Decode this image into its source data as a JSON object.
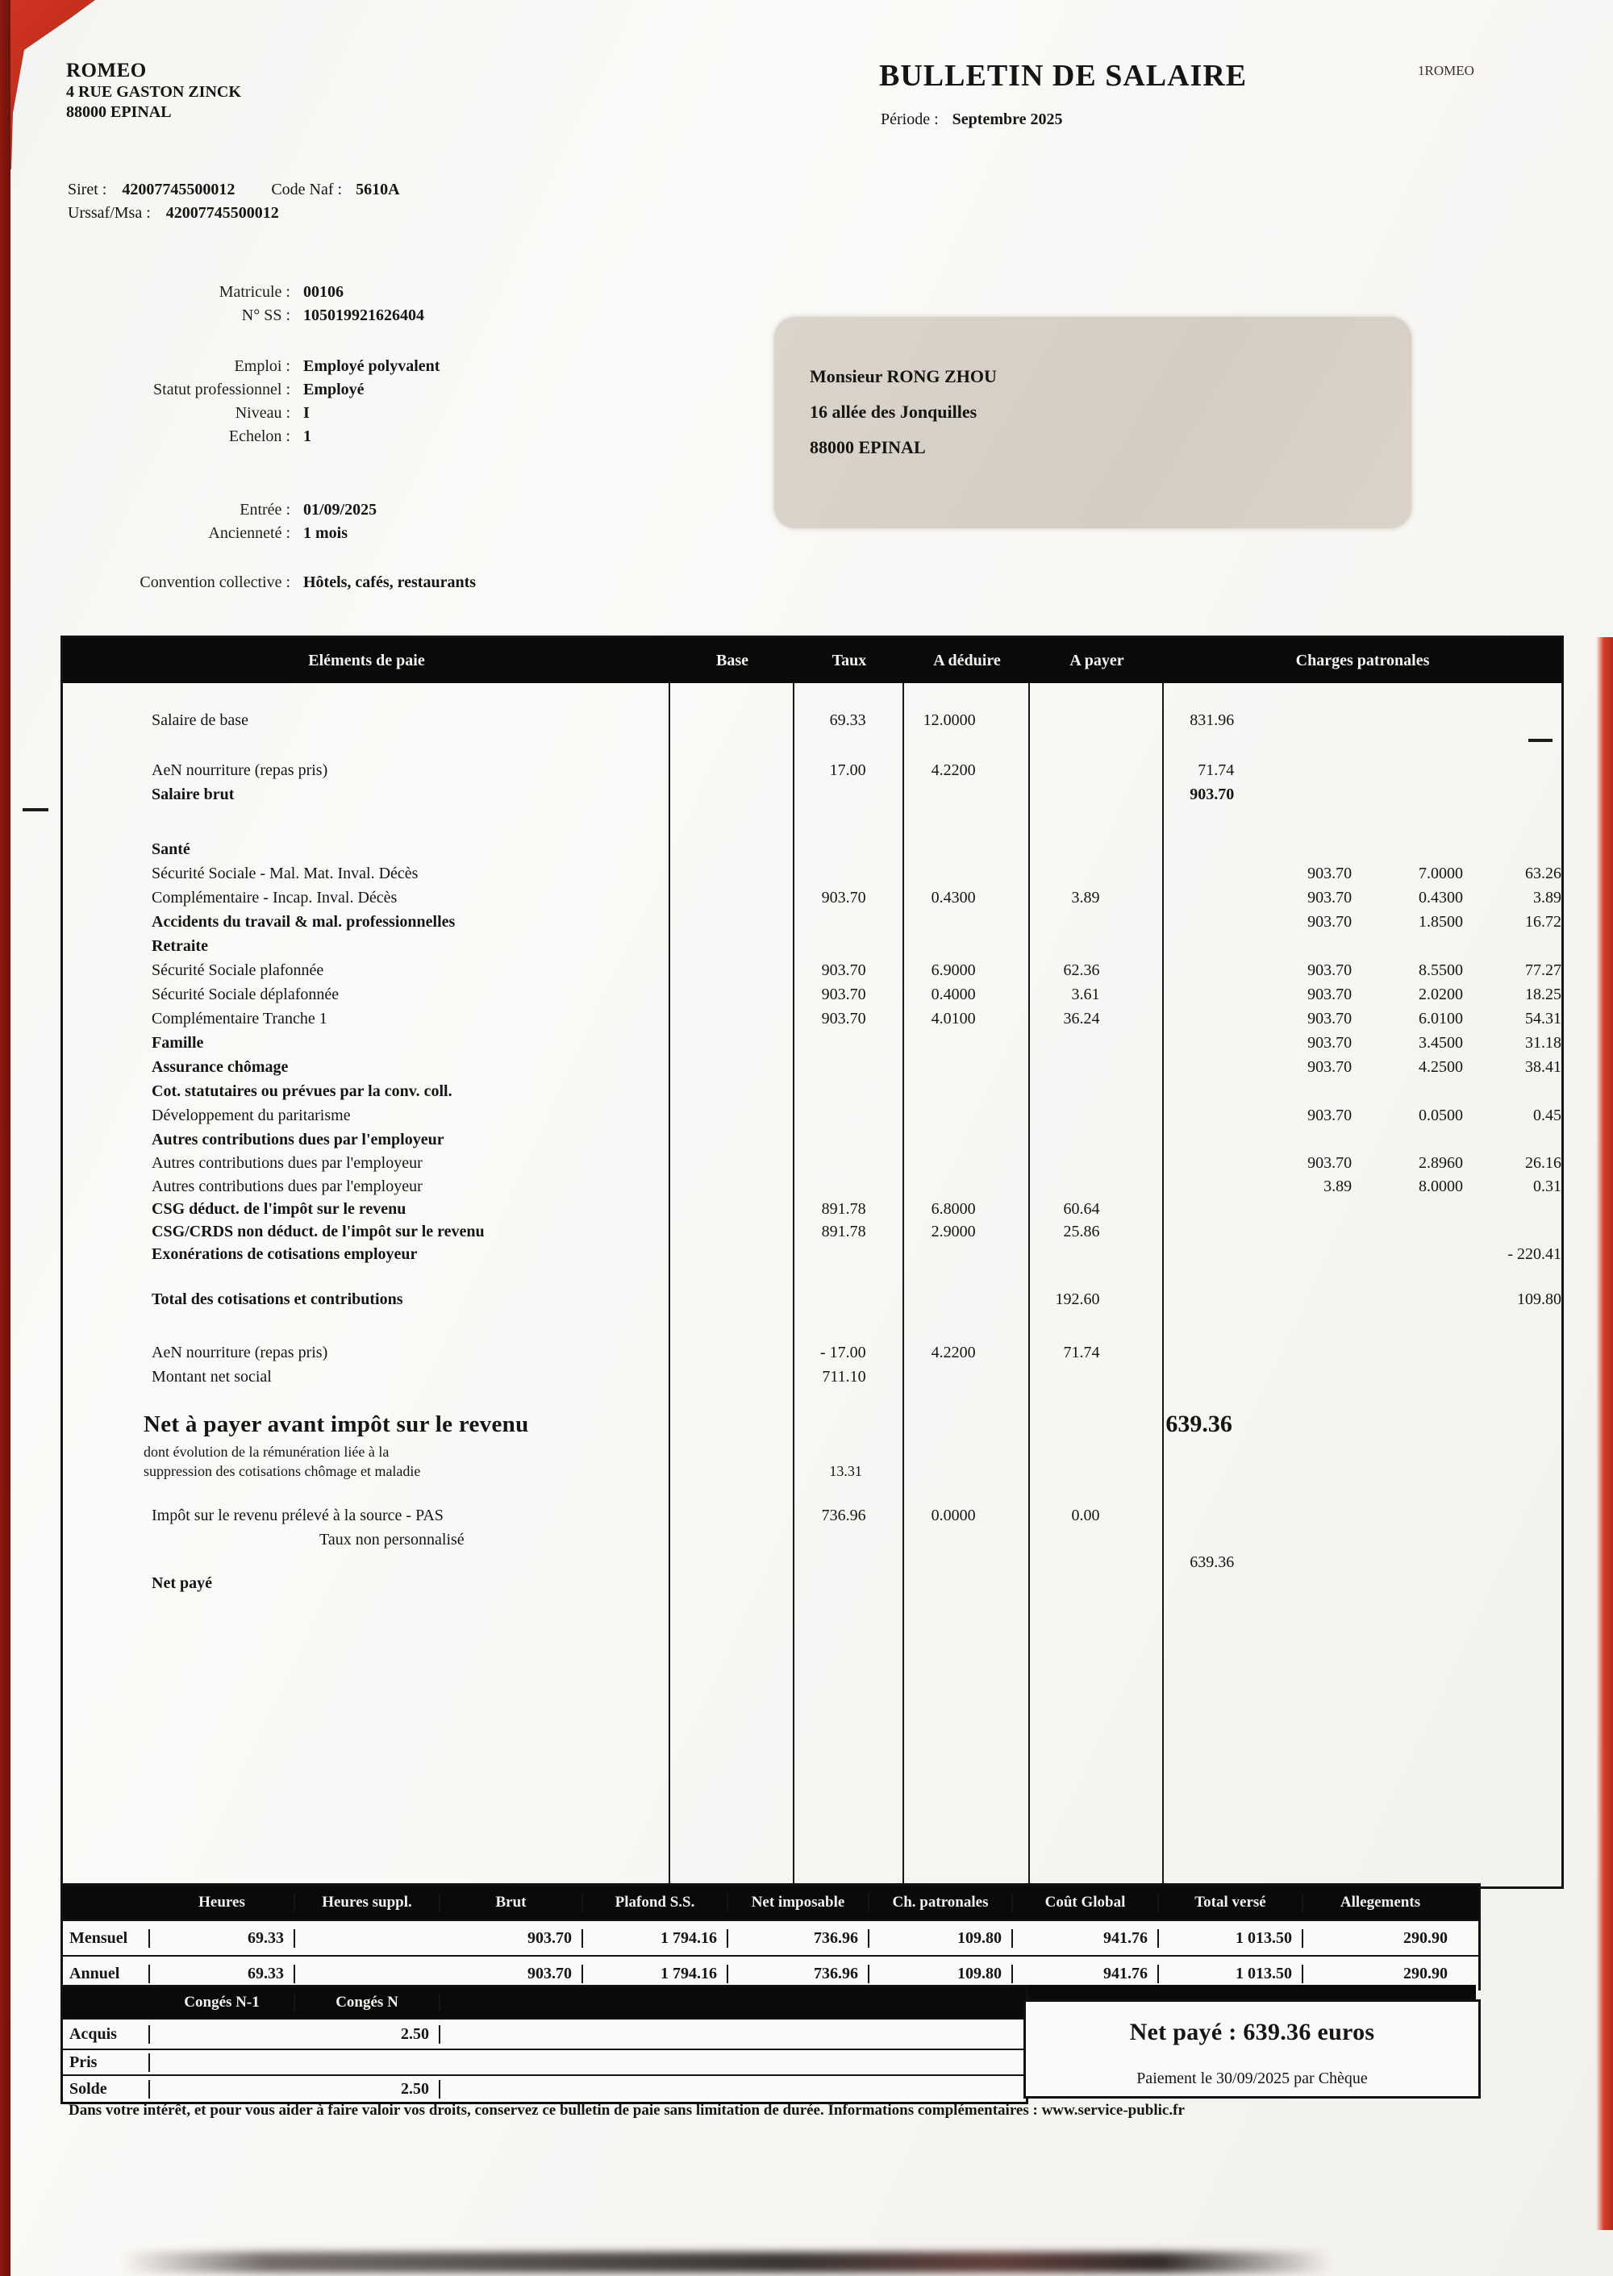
{
  "header": {
    "company_name": "ROMEO",
    "company_address1": "4 RUE GASTON ZINCK",
    "company_address2": "88000 EPINAL",
    "title": "BULLETIN DE SALAIRE",
    "corner_ref": "1ROMEO",
    "period_label": "Période :",
    "period_value": "Septembre 2025",
    "siret_label": "Siret :",
    "siret_value": "42007745500012",
    "code_naf_label": "Code Naf :",
    "code_naf_value": "5610A",
    "urssaf_label": "Urssaf/Msa :",
    "urssaf_value": "42007745500012"
  },
  "employee": {
    "group1": [
      {
        "label": "Matricule :",
        "value": "00106"
      },
      {
        "label": "N° SS :",
        "value": "105019921626404"
      }
    ],
    "group2": [
      {
        "label": "Emploi :",
        "value": "Employé polyvalent"
      },
      {
        "label": "Statut professionnel :",
        "value": "Employé"
      },
      {
        "label": "Niveau :",
        "value": "I"
      },
      {
        "label": "Echelon :",
        "value": "1"
      }
    ],
    "group3": [
      {
        "label": "Entrée :",
        "value": "01/09/2025"
      },
      {
        "label": "Ancienneté :",
        "value": "1 mois"
      }
    ],
    "convention": {
      "label": "Convention collective :",
      "value": "Hôtels, cafés, restaurants"
    }
  },
  "address_box": {
    "lines": [
      "Monsieur RONG ZHOU",
      "16 allée des Jonquilles",
      "88000 EPINAL"
    ]
  },
  "paie_table": {
    "headers": [
      "Eléments de paie",
      "Base",
      "Taux",
      "A déduire",
      "A payer",
      "Charges patronales"
    ],
    "rows": [
      {
        "h": 36
      },
      {
        "label": "Salaire de base",
        "base": "69.33",
        "taux": "12.0000",
        "pay": "831.96",
        "h": 30
      },
      {
        "h": 32
      },
      {
        "label": "AeN nourriture (repas pris)",
        "base": "17.00",
        "taux": "4.2200",
        "pay": "71.74",
        "h": 30
      },
      {
        "label": "Salaire brut",
        "cls": "bold",
        "pay": "903.70",
        "h": 30
      },
      {
        "h": 38
      },
      {
        "label": "Santé",
        "cls": "bold",
        "h": 30
      },
      {
        "label": "Sécurité Sociale - Mal. Mat. Inval. Décès",
        "cpb": "903.70",
        "cpt": "7.0000",
        "cpa": "63.26",
        "h": 30
      },
      {
        "label": "Complémentaire - Incap. Inval. Décès",
        "base": "903.70",
        "taux": "0.4300",
        "ded": "3.89",
        "cpb": "903.70",
        "cpt": "0.4300",
        "cpa": "3.89",
        "h": 30
      },
      {
        "label": "Accidents du travail & mal. professionnelles",
        "cls": "bold",
        "cpb": "903.70",
        "cpt": "1.8500",
        "cpa": "16.72",
        "h": 30
      },
      {
        "label": "Retraite",
        "cls": "bold",
        "h": 30
      },
      {
        "label": "Sécurité Sociale plafonnée",
        "base": "903.70",
        "taux": "6.9000",
        "ded": "62.36",
        "cpb": "903.70",
        "cpt": "8.5500",
        "cpa": "77.27",
        "h": 30
      },
      {
        "label": "Sécurité Sociale déplafonnée",
        "base": "903.70",
        "taux": "0.4000",
        "ded": "3.61",
        "cpb": "903.70",
        "cpt": "2.0200",
        "cpa": "18.25",
        "h": 30
      },
      {
        "label": "Complémentaire Tranche 1",
        "base": "903.70",
        "taux": "4.0100",
        "ded": "36.24",
        "cpb": "903.70",
        "cpt": "6.0100",
        "cpa": "54.31",
        "h": 30
      },
      {
        "label": "Famille",
        "cls": "bold",
        "cpb": "903.70",
        "cpt": "3.4500",
        "cpa": "31.18",
        "h": 30
      },
      {
        "label": "Assurance chômage",
        "cls": "bold",
        "cpb": "903.70",
        "cpt": "4.2500",
        "cpa": "38.41",
        "h": 30
      },
      {
        "label": "Cot. statutaires ou prévues par la conv. coll.",
        "cls": "bold",
        "h": 30
      },
      {
        "label": "Développement du paritarisme",
        "cpb": "903.70",
        "cpt": "0.0500",
        "cpa": "0.45",
        "h": 30
      },
      {
        "label": "Autres contributions dues par l'employeur",
        "cls": "bold",
        "h": 29
      },
      {
        "label": "Autres contributions dues par l'employeur",
        "cpb": "903.70",
        "cpt": "2.8960",
        "cpa": "26.16",
        "h": 29
      },
      {
        "label": "Autres contributions dues par l'employeur",
        "cpb": "3.89",
        "cpt": "8.0000",
        "cpa": "0.31",
        "h": 28
      },
      {
        "label": "CSG déduct. de l'impôt sur le revenu",
        "cls": "bold",
        "base": "891.78",
        "taux": "6.8000",
        "ded": "60.64",
        "h": 28
      },
      {
        "label": "CSG/CRDS non déduct. de l'impôt sur le revenu",
        "cls": "bold",
        "base": "891.78",
        "taux": "2.9000",
        "ded": "25.86",
        "h": 28
      },
      {
        "label": "Exonérations de cotisations employeur",
        "cls": "bold",
        "cpa": "- 220.41",
        "h": 30
      },
      {
        "h": 26
      },
      {
        "label": "Total des cotisations et contributions",
        "cls": "bold",
        "ded": "192.60",
        "cpa": "109.80",
        "h": 30
      },
      {
        "h": 36
      },
      {
        "label": "AeN nourriture (repas pris)",
        "base": "- 17.00",
        "taux": "4.2200",
        "ded": "71.74",
        "h": 30
      },
      {
        "label": "Montant net social",
        "base": "711.10",
        "h": 30
      },
      {
        "h": 24
      },
      {
        "label": "Net à payer avant impôt sur le revenu",
        "cls": "big",
        "pay": "639.36",
        "h": 40
      },
      {
        "label": "dont évolution de la rémunération liée à la",
        "cls": "small",
        "h": 24
      },
      {
        "label": "suppression des cotisations chômage et maladie",
        "cls": "small",
        "base": "13.31",
        "h": 26
      },
      {
        "h": 28
      },
      {
        "label": "Impôt sur le revenu prélevé à la source - PAS",
        "base": "736.96",
        "taux": "0.0000",
        "ded": "0.00",
        "h": 30
      },
      {
        "label": "Taux non personnalisé",
        "cls": "indent",
        "h": 28
      },
      {
        "label": "",
        "pay": "639.36",
        "h": 26
      },
      {
        "label": "Net payé",
        "cls": "bold",
        "h": 30
      }
    ]
  },
  "summary_table": {
    "headers": [
      "",
      "Heures",
      "Heures suppl.",
      "Brut",
      "Plafond S.S.",
      "Net imposable",
      "Ch. patronales",
      "Coût Global",
      "Total versé",
      "Allegements"
    ],
    "rows": [
      {
        "label": "Mensuel",
        "values": [
          "69.33",
          "",
          "903.70",
          "1 794.16",
          "736.96",
          "109.80",
          "941.76",
          "1 013.50",
          "290.90"
        ]
      },
      {
        "label": "Annuel",
        "values": [
          "69.33",
          "",
          "903.70",
          "1 794.16",
          "736.96",
          "109.80",
          "941.76",
          "1 013.50",
          "290.90"
        ]
      }
    ]
  },
  "conges_table": {
    "headers": [
      "",
      "Congés N-1",
      "Congés N"
    ],
    "rows": [
      {
        "label": "Acquis",
        "values": [
          "",
          "2.50",
          "",
          "",
          "",
          ""
        ]
      },
      {
        "label": "Pris",
        "values": [
          "",
          "",
          "",
          "",
          "",
          ""
        ]
      },
      {
        "label": "Solde",
        "values": [
          "",
          "2.50",
          "",
          "",
          "",
          ""
        ]
      }
    ]
  },
  "net_paye": {
    "text": "Net payé : 639.36 euros",
    "payment": "Paiement le 30/09/2025 par Chèque"
  },
  "footer": {
    "text": "Dans votre intérêt, et pour vous aider à faire valoir vos droits, conservez ce bulletin de paie sans limitation de durée. Informations complémentaires : www.service-public.fr"
  }
}
